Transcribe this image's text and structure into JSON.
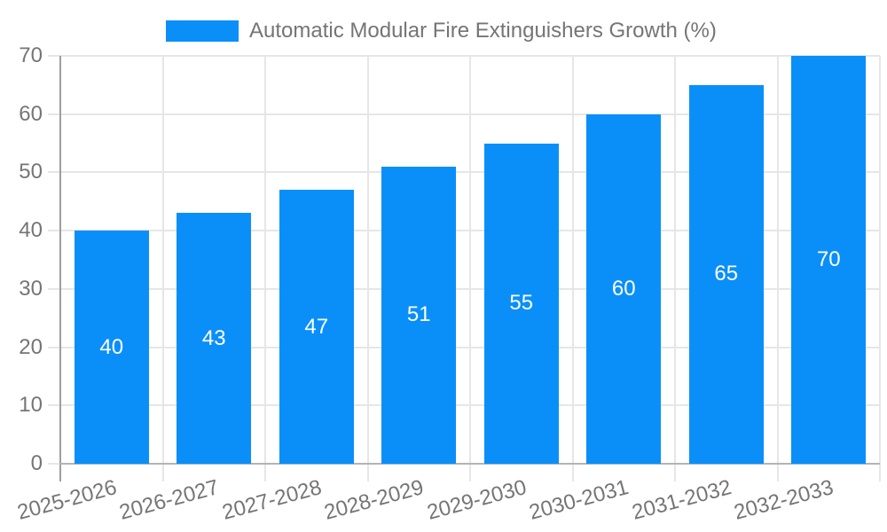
{
  "chart_data": {
    "type": "bar",
    "title": "Automatic Modular Fire Extinguishers Growth (%)",
    "legend": [
      "Automatic Modular Fire Extinguishers Growth (%)"
    ],
    "legend_position": "top-center",
    "categories": [
      "2025-2026",
      "2026-2027",
      "2027-2028",
      "2028-2029",
      "2029-2030",
      "2030-2031",
      "2031-2032",
      "2032-2033"
    ],
    "values": [
      40,
      43,
      47,
      51,
      55,
      60,
      65,
      70
    ],
    "value_labels_visible": true,
    "xlabel": "",
    "ylabel": "",
    "ylim": [
      0,
      70
    ],
    "yticks": [
      0,
      10,
      20,
      30,
      40,
      50,
      60,
      70
    ],
    "grid": true,
    "x_tick_rotation_deg": -15,
    "colors": {
      "bar": "#0a8ff9",
      "value_label": "#ffffff",
      "axis_text": "#757575",
      "gridline": "#e6e6e6",
      "y_axis_line": "#9e9e9e",
      "x_axis_line": "#b3b3b3",
      "background": "#ffffff"
    }
  }
}
